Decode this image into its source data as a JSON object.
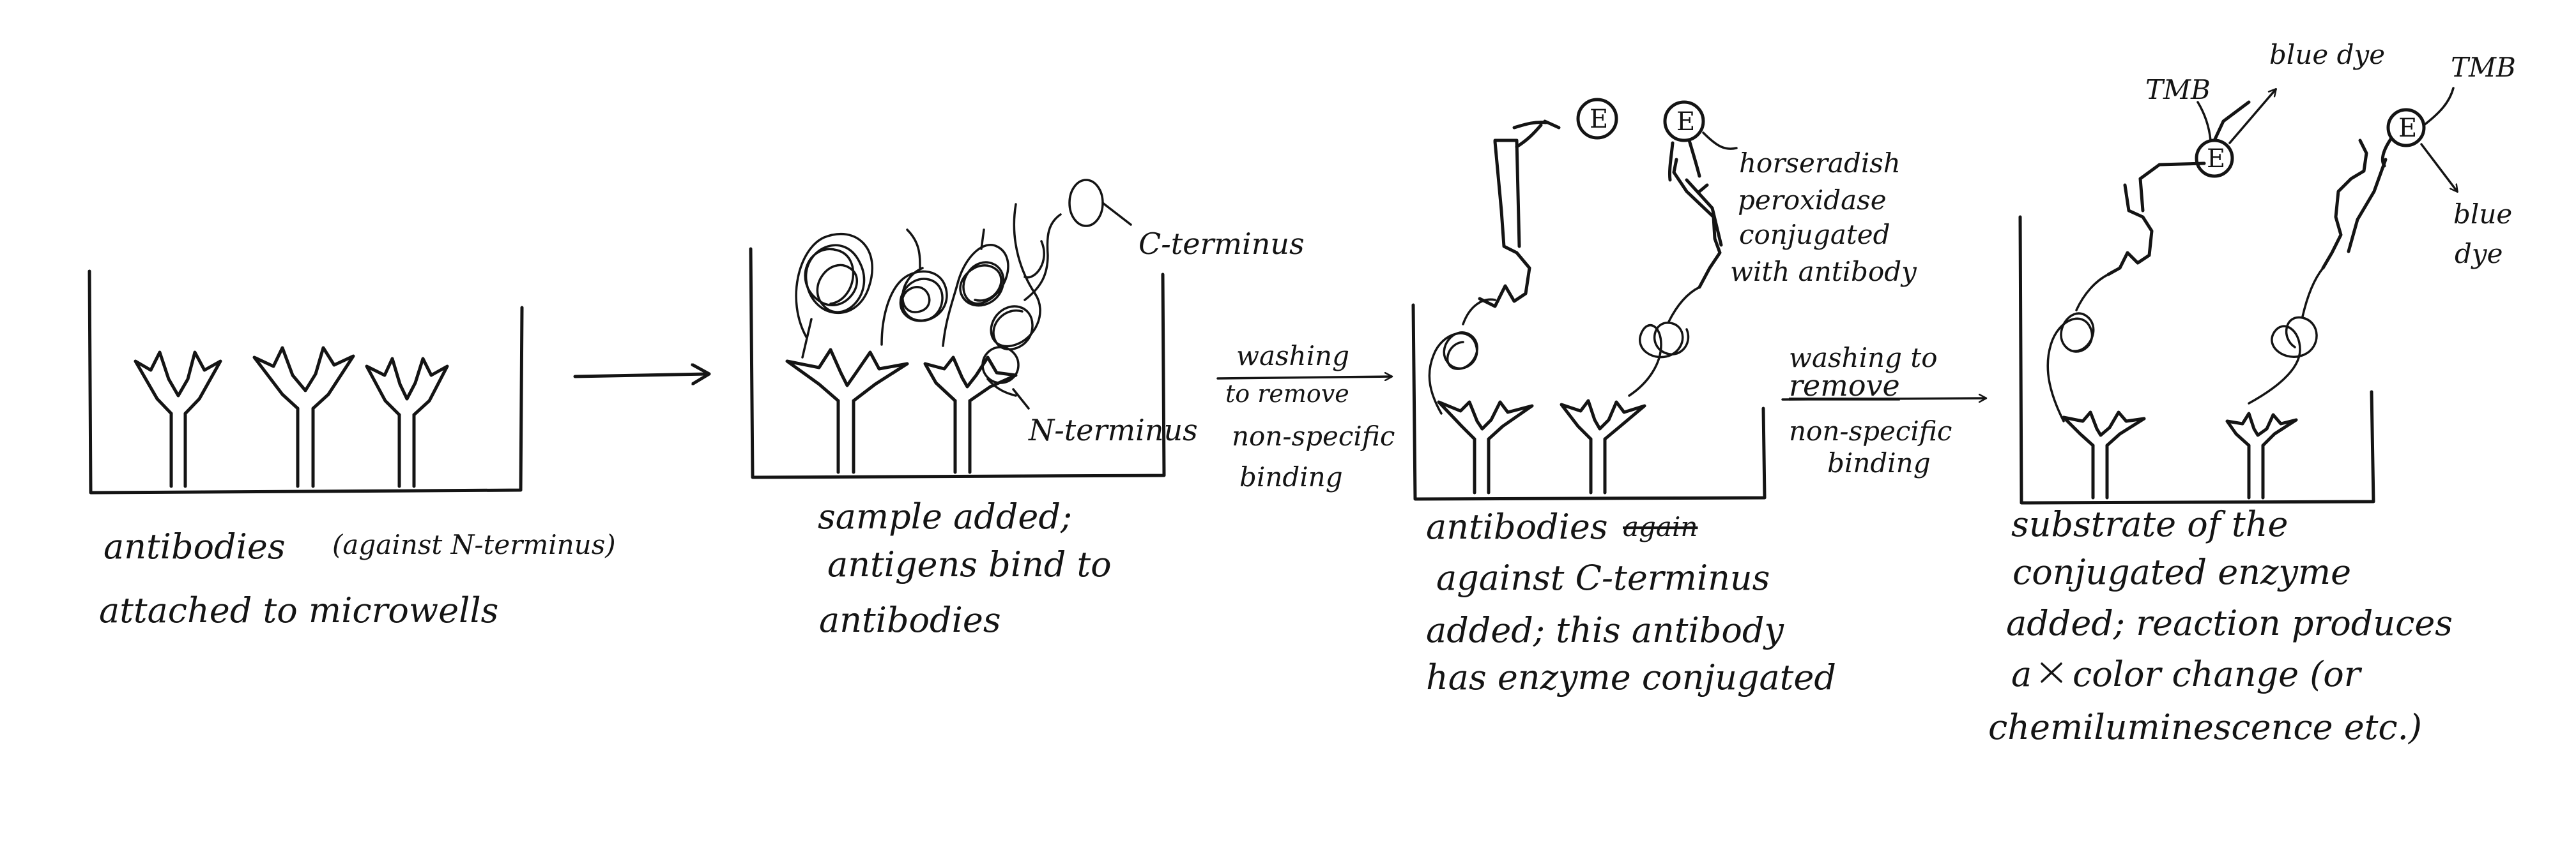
{
  "enzyme_symbol": "E",
  "panel1": {
    "caption_line1_a": "antibodies",
    "caption_line1_b": "(against N-terminus)",
    "caption_line2": "attached to microwells"
  },
  "panel2": {
    "caption_line1": "sample added;",
    "caption_line2": "antigens bind to",
    "caption_line3": "antibodies",
    "label_c_terminus": "C-terminus",
    "label_n_terminus": "N-terminus"
  },
  "step1": {
    "line1": "washing",
    "line2": "to remove",
    "line3": "non-specific",
    "line4": "binding"
  },
  "panel3": {
    "caption_line1_a": "antibodies",
    "caption_line1_struck": "again",
    "caption_line2": "against C-terminus",
    "caption_line3": "added; this antibody",
    "caption_line4": "has enzyme conjugated",
    "hrp_line1": "horseradish",
    "hrp_line2": "peroxidase",
    "hrp_line3": "conjugated",
    "hrp_line4": "with antibody"
  },
  "step2": {
    "line1": "washing to",
    "line2": "remove",
    "line3": "non-specific",
    "line4": "binding"
  },
  "panel4": {
    "caption_line1": "substrate of the",
    "caption_line2": "conjugated enzyme",
    "caption_line3": "added; reaction produces",
    "caption_line4_a": "a",
    "caption_line4_b": "color change (or",
    "caption_line5": "chemiluminescence etc.)",
    "tmb_left": "TMB",
    "tmb_right": "TMB",
    "blue_dye_top": "blue dye",
    "blue_dye_right_1": "blue",
    "blue_dye_right_2": "dye"
  }
}
